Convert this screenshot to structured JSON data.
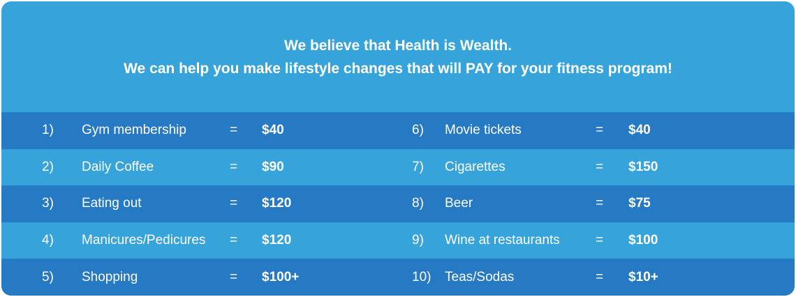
{
  "header": {
    "line1": "We believe that Health is Wealth.",
    "line2": "We can help you make lifestyle changes that will PAY for your fitness program!"
  },
  "equals": "=",
  "colors": {
    "card_light_blue": "#36A4DA",
    "row_dark_blue": "#2679C3",
    "text_white": "#FFFFFF",
    "page_background": "#FFFFFF"
  },
  "items": [
    {
      "num": "1)",
      "label": "Gym membership",
      "value": "$40"
    },
    {
      "num": "2)",
      "label": "Daily Coffee",
      "value": "$90"
    },
    {
      "num": "3)",
      "label": "Eating out",
      "value": "$120"
    },
    {
      "num": "4)",
      "label": "Manicures/Pedicures",
      "value": "$120"
    },
    {
      "num": "5)",
      "label": "Shopping",
      "value": "$100+"
    },
    {
      "num": "6)",
      "label": "Movie tickets",
      "value": "$40"
    },
    {
      "num": "7)",
      "label": "Cigarettes",
      "value": "$150"
    },
    {
      "num": "8)",
      "label": "Beer",
      "value": "$75"
    },
    {
      "num": "9)",
      "label": "Wine at restaurants",
      "value": "$100"
    },
    {
      "num": "10)",
      "label": "Teas/Sodas",
      "value": "$10+"
    }
  ],
  "chart_data": {
    "type": "table",
    "title": "We believe that Health is Wealth. We can help you make lifestyle changes that will PAY for your fitness program!",
    "categories": [
      "Gym membership",
      "Daily Coffee",
      "Eating out",
      "Manicures/Pedicures",
      "Shopping",
      "Movie tickets",
      "Cigarettes",
      "Beer",
      "Wine at restaurants",
      "Teas/Sodas"
    ],
    "values": [
      "$40",
      "$90",
      "$120",
      "$120",
      "$100+",
      "$40",
      "$150",
      "$75",
      "$100",
      "$10+"
    ],
    "layout": "two-column numbered list, alternating dark/light blue row stripes, header banner on top"
  }
}
